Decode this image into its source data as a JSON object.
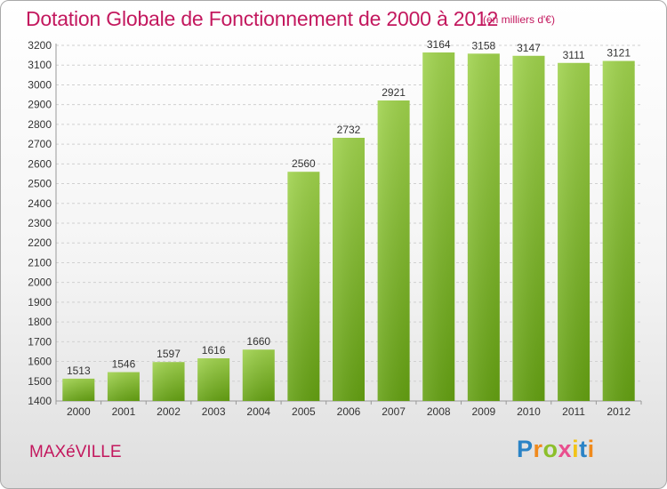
{
  "header": {
    "title": "Dotation Globale de Fonctionnement de 2000 à 2012",
    "unit_note": "(en milliers d'€)"
  },
  "footer": {
    "city": "MAXéVILLE",
    "brand_letters": [
      "P",
      "r",
      "o",
      "x",
      "i",
      "t",
      "i"
    ],
    "brand_colors": [
      "#2a83c6",
      "#f08a1c",
      "#8cbf2a",
      "#e94f8e",
      "#f2c318",
      "#2a83c6",
      "#f08a1c"
    ]
  },
  "chart_data": {
    "type": "bar",
    "title": "Dotation Globale de Fonctionnement de 2000 à 2012",
    "subtitle": "(en milliers d'€)",
    "xlabel": "",
    "ylabel": "",
    "categories": [
      "2000",
      "2001",
      "2002",
      "2003",
      "2004",
      "2005",
      "2006",
      "2007",
      "2008",
      "2009",
      "2010",
      "2011",
      "2012"
    ],
    "values": [
      1513,
      1546,
      1597,
      1616,
      1660,
      2560,
      2732,
      2921,
      3164,
      3158,
      3147,
      3111,
      3121
    ],
    "ylim": [
      1400,
      3200
    ],
    "yticks": [
      1400,
      1500,
      1600,
      1700,
      1800,
      1900,
      2000,
      2100,
      2200,
      2300,
      2400,
      2500,
      2600,
      2700,
      2800,
      2900,
      3000,
      3100,
      3200
    ],
    "grid": true,
    "bar_color_top": "#9fd24c",
    "bar_color_bottom": "#64a012"
  }
}
